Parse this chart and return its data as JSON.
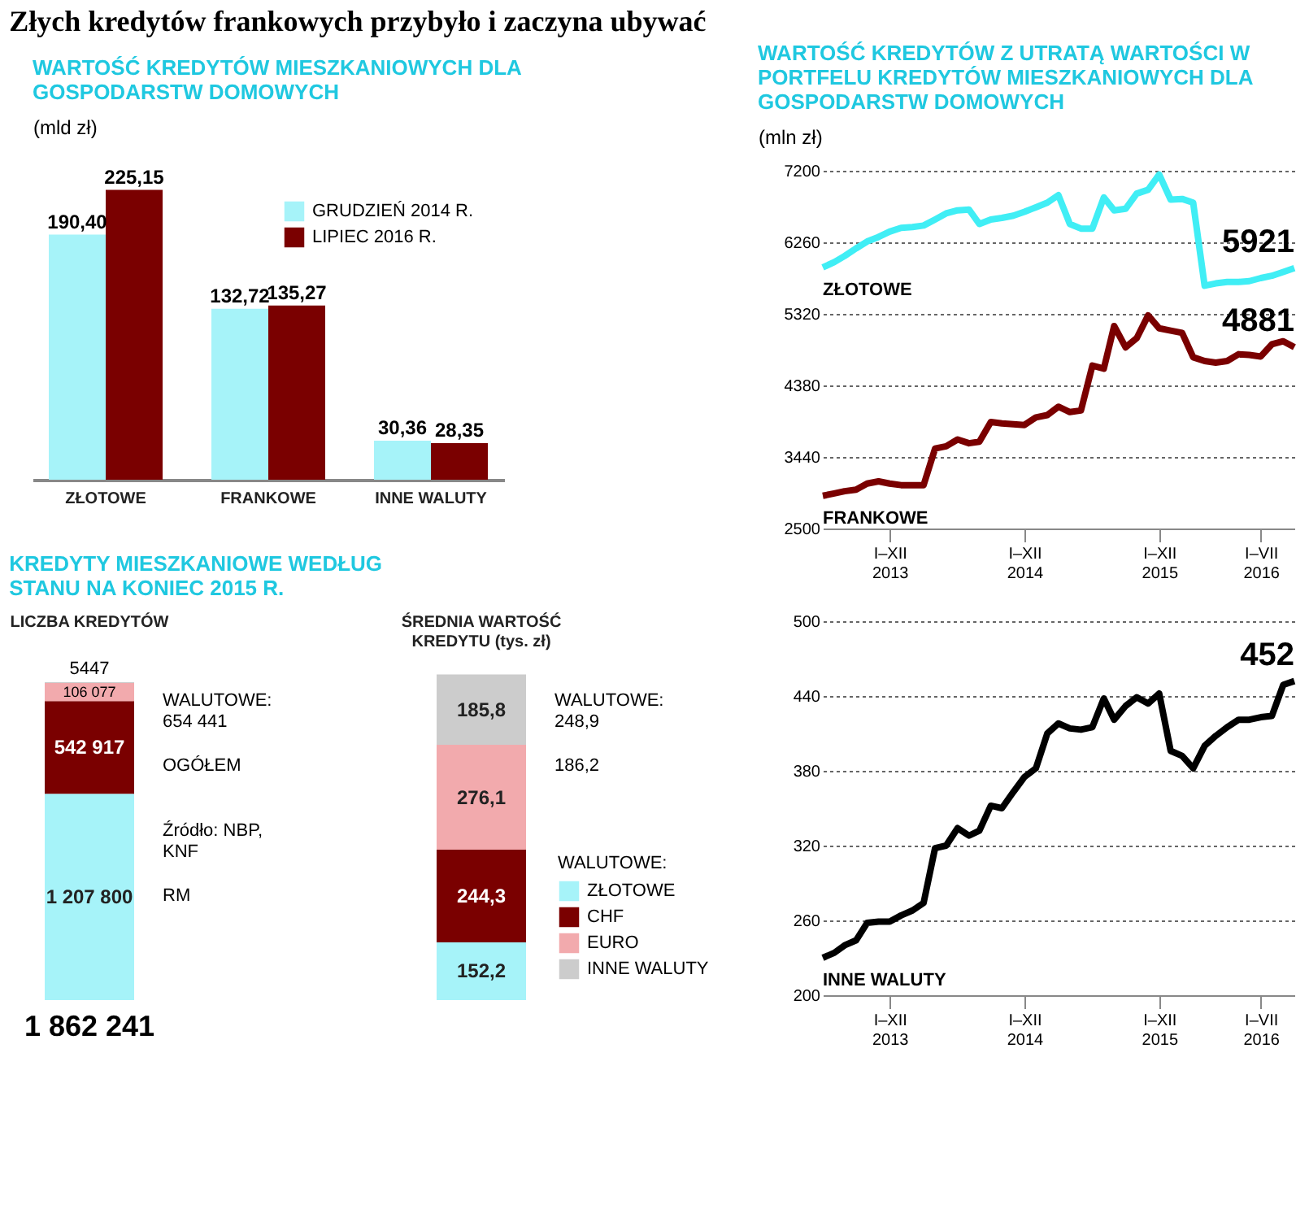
{
  "chart_data": [
    {
      "type": "bar",
      "title": "Złych kredytów frankowych przybyło i zaczyna ubywać",
      "subtitle": "WARTOŚĆ KREDYTÓW MIESZKANIOWYCH DLA GOSPODARSTW DOMOWYCH",
      "ylabel": "(mld zł)",
      "categories": [
        "ZŁOTOWE",
        "FRANKOWE",
        "INNE WALUTY"
      ],
      "series": [
        {
          "name": "GRUDZIEŃ 2014 R.",
          "color": "#a6f3f9",
          "values": [
            190.4,
            132.72,
            30.36
          ],
          "value_labels": [
            "190,40",
            "132,72",
            "30,36"
          ]
        },
        {
          "name": "LIPIEC 2016 R.",
          "color": "#7a0000",
          "values": [
            225.15,
            135.27,
            28.35
          ],
          "value_labels": [
            "225,15",
            "135,27",
            "28,35"
          ]
        }
      ],
      "legend": "top right",
      "tick_labels": "x"
    },
    {
      "type": "line",
      "title": "WARTOŚĆ KREDYTÓW Z UTRATĄ WARTOŚCI W PORTFELU KREDYTÓW MIESZKANIOWYCH DLA GOSPODARSTW DOMOWYCH",
      "ylabel": "(mln zł)",
      "x": [
        "2013-01",
        "2013-02",
        "2013-03",
        "2013-04",
        "2013-05",
        "2013-06",
        "2013-07",
        "2013-08",
        "2013-09",
        "2013-10",
        "2013-11",
        "2013-12",
        "2014-01",
        "2014-02",
        "2014-03",
        "2014-04",
        "2014-05",
        "2014-06",
        "2014-07",
        "2014-08",
        "2014-09",
        "2014-10",
        "2014-11",
        "2014-12",
        "2015-01",
        "2015-02",
        "2015-03",
        "2015-04",
        "2015-05",
        "2015-06",
        "2015-07",
        "2015-08",
        "2015-09",
        "2015-10",
        "2015-11",
        "2015-12",
        "2016-01",
        "2016-02",
        "2016-03",
        "2016-04",
        "2016-05",
        "2016-06",
        "2016-07"
      ],
      "series": [
        {
          "name": "ZŁOTOWE",
          "color": "#40eef5",
          "values": [
            5930,
            6000,
            6080,
            6180,
            6270,
            6330,
            6400,
            6450,
            6460,
            6480,
            6560,
            6640,
            6680,
            6690,
            6500,
            6560,
            6580,
            6610,
            6660,
            6720,
            6780,
            6880,
            6500,
            6440,
            6440,
            6850,
            6680,
            6700,
            6900,
            6950,
            7150,
            6820,
            6830,
            6780,
            5690,
            5720,
            5740,
            5740,
            5750,
            5790,
            5820,
            5870,
            5921
          ]
        },
        {
          "name": "FRANKOWE",
          "color": "#7a0000",
          "values": [
            2930,
            2960,
            2990,
            3010,
            3090,
            3120,
            3090,
            3070,
            3070,
            3070,
            3550,
            3580,
            3670,
            3620,
            3640,
            3900,
            3880,
            3870,
            3860,
            3960,
            3990,
            4100,
            4030,
            4050,
            4640,
            4600,
            5160,
            4880,
            5000,
            5300,
            5130,
            5100,
            5070,
            4750,
            4700,
            4680,
            4700,
            4790,
            4780,
            4760,
            4920,
            4960,
            4881
          ]
        }
      ],
      "xlim": [
        "2013-01",
        "2016-07"
      ],
      "xticks": [
        {
          "value": "2013-07",
          "label": "I–XII 2013"
        },
        {
          "value": "2014-07",
          "label": "I–XII 2014"
        },
        {
          "value": "2015-07",
          "label": "I–XII 2015"
        },
        {
          "value": "2016-04",
          "label": "I–VII 2016"
        }
      ],
      "ylim": [
        2500,
        7200
      ],
      "yticks": [
        2500,
        3440,
        4380,
        5320,
        6260,
        7200
      ],
      "grid": "y",
      "annotations": [
        {
          "text": "5921",
          "x": "2016-07",
          "y": 5921
        },
        {
          "text": "4881",
          "x": "2016-07",
          "y": 4881
        }
      ]
    },
    {
      "type": "line",
      "x": [
        "2013-01",
        "2013-02",
        "2013-03",
        "2013-04",
        "2013-05",
        "2013-06",
        "2013-07",
        "2013-08",
        "2013-09",
        "2013-10",
        "2013-11",
        "2013-12",
        "2014-01",
        "2014-02",
        "2014-03",
        "2014-04",
        "2014-05",
        "2014-06",
        "2014-07",
        "2014-08",
        "2014-09",
        "2014-10",
        "2014-11",
        "2014-12",
        "2015-01",
        "2015-02",
        "2015-03",
        "2015-04",
        "2015-05",
        "2015-06",
        "2015-07",
        "2015-08",
        "2015-09",
        "2015-10",
        "2015-11",
        "2015-12",
        "2016-01",
        "2016-02",
        "2016-03",
        "2016-04",
        "2016-05",
        "2016-06",
        "2016-07"
      ],
      "series": [
        {
          "name": "INNE WALUTY",
          "color": "#000000",
          "values": [
            230,
            234,
            240,
            244,
            258,
            259,
            259,
            264,
            268,
            274,
            318,
            320,
            334,
            328,
            332,
            352,
            350,
            363,
            375,
            382,
            410,
            418,
            414,
            413,
            415,
            438,
            421,
            432,
            439,
            434,
            442,
            396,
            392,
            382,
            400,
            408,
            415,
            421,
            421,
            423,
            424,
            449,
            452
          ]
        }
      ],
      "xlim": [
        "2013-01",
        "2016-07"
      ],
      "xticks": [
        {
          "value": "2013-07",
          "label": "I–XII 2013"
        },
        {
          "value": "2014-07",
          "label": "I–XII 2014"
        },
        {
          "value": "2015-07",
          "label": "I–XII 2015"
        },
        {
          "value": "2016-04",
          "label": "I–VII 2016"
        }
      ],
      "ylim": [
        200,
        500
      ],
      "yticks": [
        200,
        260,
        320,
        380,
        440,
        500
      ],
      "grid": "y",
      "annotations": [
        {
          "text": "452",
          "x": "2016-07",
          "y": 452
        }
      ]
    },
    {
      "type": "bar",
      "stacked": true,
      "title": "KREDYTY MIESZKANIOWE WEDŁUG STANU NA KONIEC 2015 R.",
      "categories": [
        "LICZBA KREDYTÓW"
      ],
      "series": [
        {
          "color": "#a6f3f9",
          "values": [
            1207800
          ],
          "value_labels": [
            "1 207 800"
          ]
        },
        {
          "color": "#7a0000",
          "values": [
            542917
          ],
          "value_labels": [
            "542 917"
          ]
        },
        {
          "color": "#f2aaad",
          "values": [
            106077
          ],
          "value_labels": [
            "106 077"
          ]
        },
        {
          "color": "#cccccc",
          "values": [
            5447
          ],
          "value_labels": [
            "5447"
          ]
        }
      ],
      "totals": [
        "1 862 241"
      ],
      "annotations": [
        "WALUTOWE: 654 441",
        "OGÓŁEM",
        "Źródło: NBP, KNF",
        "RM"
      ],
      "tick_labels": "x"
    },
    {
      "type": "bar",
      "stacked": true,
      "categories": [
        "ŚREDNIA WARTOŚĆ KREDYTU (tys. zł)"
      ],
      "series": [
        {
          "name": "ZŁOTOWE",
          "color": "#a6f3f9",
          "values": [
            152.2
          ],
          "value_labels": [
            "152,2"
          ]
        },
        {
          "name": "CHF",
          "color": "#7a0000",
          "values": [
            244.3
          ],
          "value_labels": [
            "244,3"
          ]
        },
        {
          "name": "EURO",
          "color": "#f2aaad",
          "values": [
            276.1
          ],
          "value_labels": [
            "276,1"
          ]
        },
        {
          "name": "INNE WALUTY",
          "color": "#cccccc",
          "values": [
            185.8
          ],
          "value_labels": [
            "185,8"
          ]
        }
      ],
      "legend_title": "WALUTOWE:",
      "annotations": [
        "WALUTOWE: 248,9",
        "186,2"
      ],
      "legend": "right",
      "tick_labels": "x"
    }
  ]
}
